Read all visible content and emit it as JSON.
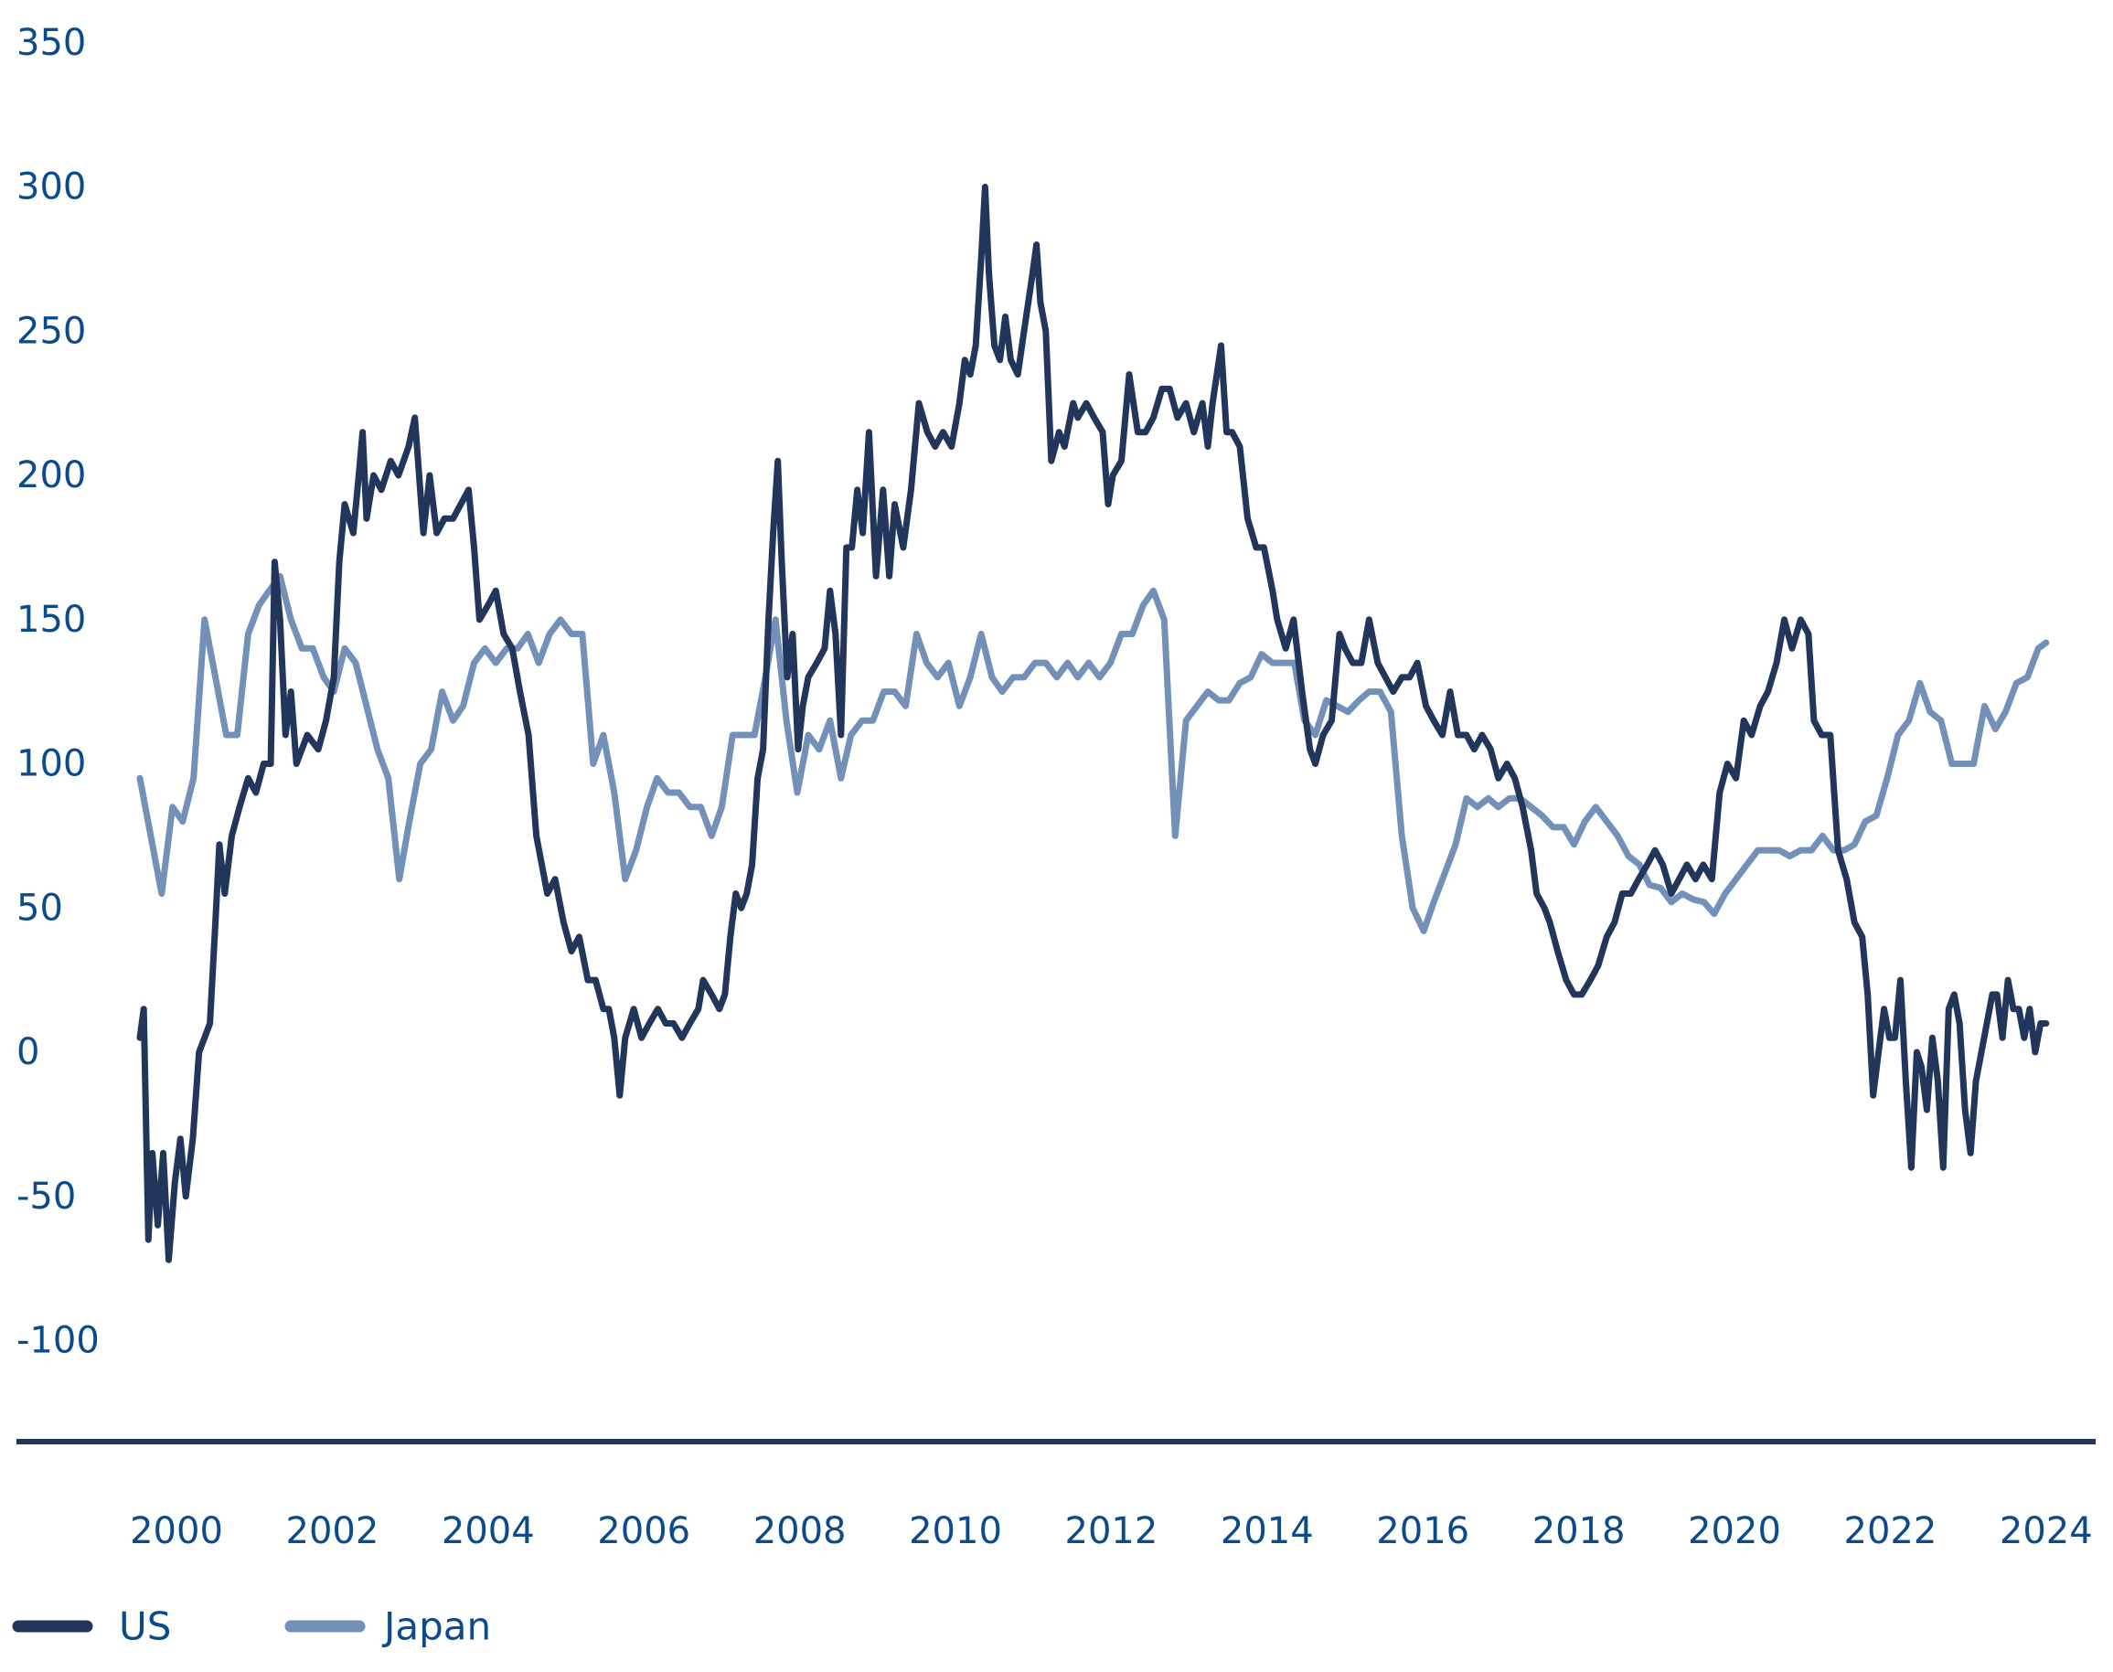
{
  "chart_data": {
    "type": "line",
    "title": "",
    "xlabel": "",
    "ylabel": "",
    "xlim": [
      1999.5,
      2024.0
    ],
    "ylim": [
      -100,
      350
    ],
    "grid": false,
    "legend_position": "bottom-left",
    "y_ticks": [
      350,
      300,
      250,
      200,
      150,
      100,
      50,
      0,
      -50,
      -100
    ],
    "y_tick_labels": [
      "350",
      "300",
      "250",
      "200",
      "150",
      "100",
      "50",
      "0",
      "-50",
      "-100"
    ],
    "x_ticks": [
      2000,
      2002,
      2004,
      2006,
      2008,
      2010,
      2012,
      2014,
      2016,
      2018,
      2020,
      2022,
      2024
    ],
    "x_tick_labels": [
      "2000",
      "2002",
      "2004",
      "2006",
      "2008",
      "2010",
      "2012",
      "2014",
      "2016",
      "2018",
      "2020",
      "2022",
      "2024"
    ],
    "colors": {
      "US": "#22365c",
      "Japan": "#7391b8",
      "axis": "#22365c",
      "text": "#0b4a8b"
    },
    "series": [
      {
        "name": "US",
        "x": [
          1999.53,
          1999.58,
          1999.64,
          1999.69,
          1999.76,
          1999.83,
          1999.9,
          1999.98,
          2000.05,
          2000.12,
          2000.21,
          2000.29,
          2000.36,
          2000.43,
          2000.5,
          2000.55,
          2000.62,
          2000.71,
          2000.81,
          2000.92,
          2001.02,
          2001.12,
          2001.21,
          2001.26,
          2001.33,
          2001.4,
          2001.47,
          2001.54,
          2001.68,
          2001.82,
          2001.92,
          2002.02,
          2002.09,
          2002.16,
          2002.27,
          2002.34,
          2002.39,
          2002.44,
          2002.53,
          2002.63,
          2002.75,
          2002.85,
          2002.98,
          2003.06,
          2003.17,
          2003.25,
          2003.34,
          2003.44,
          2003.55,
          2003.65,
          2003.75,
          2003.82,
          2003.89,
          2004.0,
          2004.1,
          2004.2,
          2004.31,
          2004.41,
          2004.52,
          2004.62,
          2004.69,
          2004.76,
          2004.86,
          2004.97,
          2005.07,
          2005.17,
          2005.28,
          2005.38,
          2005.48,
          2005.55,
          2005.62,
          2005.69,
          2005.76,
          2005.87,
          2005.97,
          2006.07,
          2006.18,
          2006.28,
          2006.38,
          2006.49,
          2006.59,
          2006.7,
          2006.76,
          2006.87,
          2006.97,
          2007.04,
          2007.11,
          2007.18,
          2007.25,
          2007.32,
          2007.39,
          2007.46,
          2007.53,
          2007.6,
          2007.66,
          2007.72,
          2007.77,
          2007.84,
          2007.91,
          2007.98,
          2008.04,
          2008.11,
          2008.22,
          2008.32,
          2008.39,
          2008.46,
          2008.53,
          2008.6,
          2008.67,
          2008.74,
          2008.81,
          2008.89,
          2008.98,
          2009.07,
          2009.15,
          2009.22,
          2009.33,
          2009.43,
          2009.53,
          2009.64,
          2009.74,
          2009.84,
          2009.95,
          2010.05,
          2010.12,
          2010.19,
          2010.26,
          2010.33,
          2010.38,
          2010.43,
          2010.5,
          2010.57,
          2010.64,
          2010.71,
          2010.8,
          2010.88,
          2010.99,
          2011.04,
          2011.09,
          2011.16,
          2011.23,
          2011.33,
          2011.4,
          2011.51,
          2011.57,
          2011.68,
          2011.78,
          2011.89,
          2011.96,
          2012.02,
          2012.13,
          2012.23,
          2012.34,
          2012.44,
          2012.54,
          2012.65,
          2012.75,
          2012.85,
          2012.96,
          2013.06,
          2013.17,
          2013.24,
          2013.3,
          2013.41,
          2013.48,
          2013.55,
          2013.65,
          2013.75,
          2013.86,
          2013.96,
          2014.07,
          2014.13,
          2014.24,
          2014.34,
          2014.45,
          2014.55,
          2014.62,
          2014.72,
          2014.83,
          2014.93,
          2015.0,
          2015.1,
          2015.21,
          2015.31,
          2015.42,
          2015.52,
          2015.62,
          2015.73,
          2015.83,
          2015.93,
          2016.04,
          2016.14,
          2016.25,
          2016.35,
          2016.45,
          2016.56,
          2016.66,
          2016.76,
          2016.87,
          2016.97,
          2017.08,
          2017.18,
          2017.28,
          2017.39,
          2017.46,
          2017.56,
          2017.63,
          2017.73,
          2017.84,
          2017.94,
          2018.04,
          2018.15,
          2018.25,
          2018.36,
          2018.46,
          2018.56,
          2018.67,
          2018.77,
          2018.88,
          2018.98,
          2019.08,
          2019.19,
          2019.29,
          2019.39,
          2019.5,
          2019.6,
          2019.71,
          2019.81,
          2019.91,
          2020.02,
          2020.12,
          2020.22,
          2020.33,
          2020.43,
          2020.54,
          2020.64,
          2020.74,
          2020.85,
          2020.95,
          2021.02,
          2021.12,
          2021.23,
          2021.33,
          2021.44,
          2021.54,
          2021.64,
          2021.71,
          2021.78,
          2021.85,
          2021.92,
          2021.99,
          2022.06,
          2022.13,
          2022.2,
          2022.27,
          2022.34,
          2022.4,
          2022.47,
          2022.54,
          2022.61,
          2022.68,
          2022.75,
          2022.82,
          2022.89,
          2022.96,
          2023.03,
          2023.1,
          2023.17,
          2023.24,
          2023.31,
          2023.37,
          2023.44,
          2023.51,
          2023.58,
          2023.65,
          2023.72,
          2023.79,
          2023.86,
          2023.93,
          2024.0
        ],
        "values": [
          5,
          15,
          -65,
          -35,
          -60,
          -35,
          -72,
          -45,
          -30,
          -50,
          -30,
          0,
          5,
          10,
          45,
          72,
          55,
          75,
          85,
          95,
          90,
          100,
          100,
          170,
          150,
          110,
          125,
          100,
          110,
          105,
          115,
          130,
          170,
          190,
          180,
          200,
          215,
          185,
          200,
          195,
          205,
          200,
          210,
          220,
          180,
          200,
          180,
          185,
          185,
          190,
          195,
          175,
          150,
          155,
          160,
          145,
          140,
          125,
          110,
          75,
          65,
          55,
          60,
          45,
          35,
          40,
          25,
          25,
          15,
          15,
          5,
          -15,
          5,
          15,
          5,
          10,
          15,
          10,
          10,
          5,
          10,
          15,
          25,
          20,
          15,
          20,
          40,
          55,
          50,
          55,
          65,
          95,
          105,
          150,
          180,
          205,
          170,
          130,
          145,
          105,
          120,
          130,
          135,
          140,
          160,
          145,
          110,
          175,
          175,
          195,
          180,
          215,
          165,
          195,
          165,
          190,
          175,
          195,
          225,
          215,
          210,
          215,
          210,
          225,
          240,
          235,
          245,
          275,
          300,
          270,
          245,
          240,
          255,
          240,
          235,
          250,
          270,
          280,
          260,
          250,
          205,
          215,
          210,
          225,
          220,
          225,
          220,
          215,
          190,
          200,
          205,
          235,
          215,
          215,
          220,
          230,
          230,
          220,
          225,
          215,
          225,
          210,
          225,
          245,
          215,
          215,
          210,
          185,
          175,
          175,
          160,
          150,
          140,
          150,
          125,
          105,
          100,
          110,
          115,
          145,
          140,
          135,
          135,
          150,
          135,
          130,
          125,
          130,
          130,
          135,
          120,
          115,
          110,
          125,
          110,
          110,
          105,
          110,
          105,
          95,
          100,
          95,
          85,
          70,
          55,
          50,
          45,
          35,
          25,
          20,
          20,
          25,
          30,
          40,
          45,
          55,
          55,
          60,
          65,
          70,
          65,
          55,
          60,
          65,
          60,
          65,
          60,
          90,
          100,
          95,
          115,
          110,
          120,
          125,
          135,
          150,
          140,
          150,
          145,
          115,
          110,
          110,
          70,
          60,
          45,
          40,
          20,
          -15,
          0,
          15,
          5,
          5,
          25,
          -10,
          -40,
          0,
          -5,
          -20,
          5,
          -10,
          -40,
          15,
          20,
          10,
          -20,
          -35,
          -10,
          0,
          10,
          20,
          20,
          5,
          25,
          15,
          15,
          5,
          15,
          0,
          10,
          10
        ]
      },
      {
        "name": "Japan",
        "x": [
          1999.53,
          1999.67,
          1999.81,
          1999.95,
          2000.08,
          2000.22,
          2000.36,
          2000.5,
          2000.64,
          2000.78,
          2000.92,
          2001.06,
          2001.19,
          2001.33,
          2001.47,
          2001.61,
          2001.75,
          2001.89,
          2002.02,
          2002.16,
          2002.3,
          2002.44,
          2002.58,
          2002.72,
          2002.86,
          2002.99,
          2003.13,
          2003.27,
          2003.41,
          2003.55,
          2003.68,
          2003.82,
          2003.96,
          2004.1,
          2004.24,
          2004.38,
          2004.51,
          2004.65,
          2004.79,
          2004.93,
          2005.07,
          2005.21,
          2005.35,
          2005.48,
          2005.62,
          2005.76,
          2005.9,
          2006.04,
          2006.17,
          2006.31,
          2006.45,
          2006.59,
          2006.73,
          2006.87,
          2007.0,
          2007.14,
          2007.28,
          2007.42,
          2007.56,
          2007.69,
          2007.83,
          2007.97,
          2008.11,
          2008.25,
          2008.39,
          2008.53,
          2008.66,
          2008.8,
          2008.94,
          2009.08,
          2009.22,
          2009.36,
          2009.5,
          2009.63,
          2009.77,
          2009.91,
          2010.05,
          2010.19,
          2010.33,
          2010.47,
          2010.6,
          2010.74,
          2010.88,
          2011.02,
          2011.16,
          2011.3,
          2011.44,
          2011.57,
          2011.71,
          2011.85,
          2011.99,
          2012.13,
          2012.27,
          2012.41,
          2012.54,
          2012.68,
          2012.82,
          2012.96,
          2013.1,
          2013.24,
          2013.38,
          2013.51,
          2013.65,
          2013.79,
          2013.93,
          2014.07,
          2014.21,
          2014.35,
          2014.48,
          2014.62,
          2014.76,
          2014.9,
          2015.04,
          2015.18,
          2015.31,
          2015.45,
          2015.59,
          2015.73,
          2015.87,
          2016.01,
          2016.14,
          2016.28,
          2016.42,
          2016.56,
          2016.7,
          2016.84,
          2016.97,
          2017.11,
          2017.25,
          2017.39,
          2017.53,
          2017.67,
          2017.81,
          2017.94,
          2018.08,
          2018.22,
          2018.36,
          2018.5,
          2018.64,
          2018.78,
          2018.91,
          2019.05,
          2019.19,
          2019.33,
          2019.47,
          2019.61,
          2019.74,
          2019.88,
          2020.02,
          2020.16,
          2020.3,
          2020.44,
          2020.57,
          2020.71,
          2020.85,
          2020.99,
          2021.13,
          2021.27,
          2021.41,
          2021.54,
          2021.68,
          2021.82,
          2021.96,
          2022.1,
          2022.24,
          2022.38,
          2022.51,
          2022.65,
          2022.79,
          2022.93,
          2023.07,
          2023.21,
          2023.35,
          2023.48,
          2023.62,
          2023.76,
          2023.9,
          2024.0
        ],
        "values": [
          95,
          75,
          55,
          85,
          80,
          95,
          150,
          130,
          110,
          110,
          145,
          155,
          160,
          165,
          150,
          140,
          140,
          130,
          125,
          140,
          135,
          120,
          105,
          95,
          60,
          80,
          100,
          105,
          125,
          115,
          120,
          135,
          140,
          135,
          140,
          140,
          145,
          135,
          145,
          150,
          145,
          145,
          100,
          110,
          90,
          60,
          70,
          85,
          95,
          90,
          90,
          85,
          85,
          75,
          85,
          110,
          110,
          110,
          130,
          150,
          115,
          90,
          110,
          105,
          115,
          95,
          110,
          115,
          115,
          125,
          125,
          120,
          145,
          135,
          130,
          135,
          120,
          130,
          145,
          130,
          125,
          130,
          130,
          135,
          135,
          130,
          135,
          130,
          135,
          130,
          135,
          145,
          145,
          155,
          160,
          150,
          75,
          115,
          120,
          125,
          122,
          122,
          128,
          130,
          138,
          135,
          135,
          135,
          115,
          110,
          122,
          120,
          118,
          122,
          125,
          125,
          118,
          75,
          50,
          42,
          52,
          62,
          72,
          88,
          85,
          88,
          85,
          88,
          88,
          85,
          82,
          78,
          78,
          72,
          80,
          85,
          80,
          75,
          68,
          65,
          58,
          57,
          52,
          55,
          53,
          52,
          48,
          55,
          60,
          65,
          70,
          70,
          70,
          68,
          70,
          70,
          75,
          70,
          70,
          72,
          80,
          82,
          95,
          110,
          115,
          128,
          118,
          115,
          100,
          100,
          100,
          120,
          112,
          118,
          128,
          130,
          140,
          142
        ]
      }
    ]
  }
}
